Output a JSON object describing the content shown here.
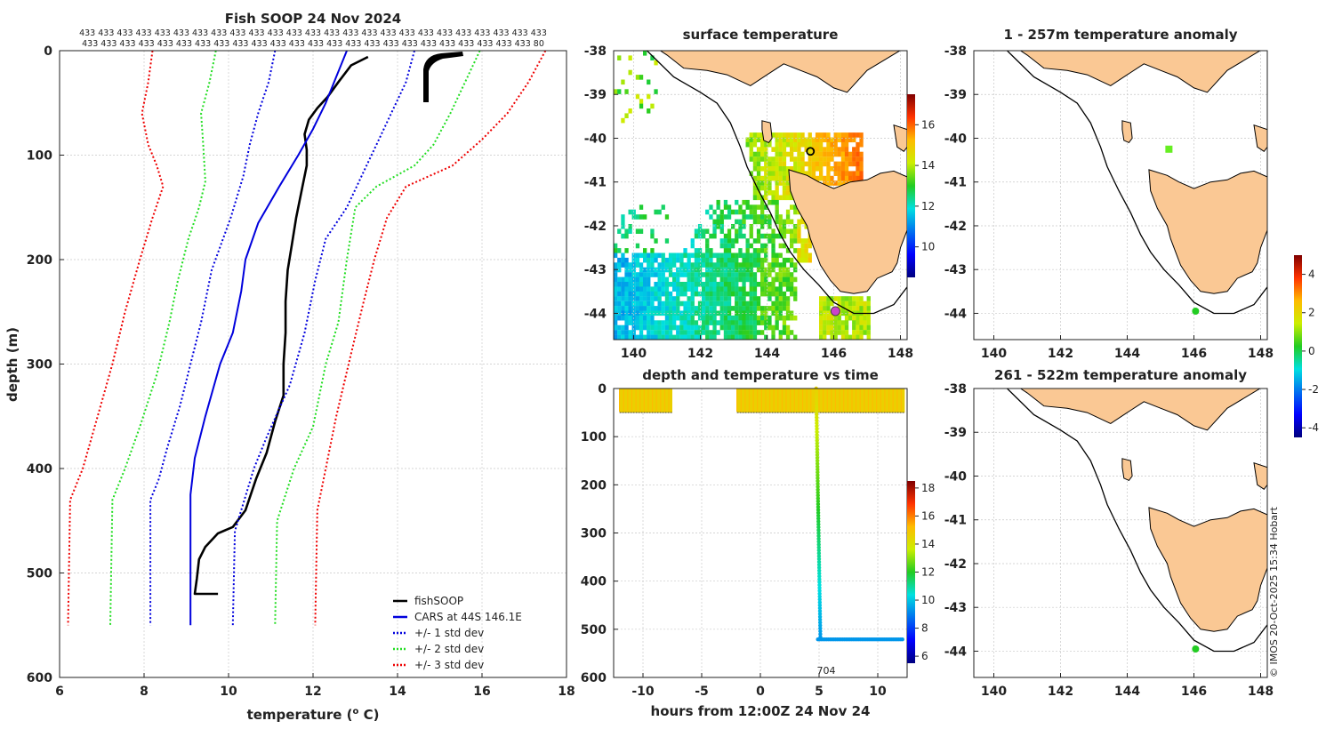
{
  "chart_data": [
    {
      "type": "line",
      "title": "Fish SOOP 24 Nov 2024",
      "xlabel": "temperature (o C)",
      "ylabel": "depth (m)",
      "xlim": [
        6,
        18
      ],
      "ylim": [
        0,
        600
      ],
      "xticks": [
        "6",
        "8",
        "10",
        "12",
        "14",
        "16",
        "18"
      ],
      "yticks": [
        "0",
        "100",
        "200",
        "300",
        "400",
        "500",
        "600"
      ],
      "count_row1": "433 433 433 433 433 433 433 433 433 433 433 433 433 433 433 433 433 433 433 433 433 433 433 433 433",
      "count_row2": "433 433 433 433 433 433 433 433 433 433 433 433 433 433 433 433 433 433 433 433 433 433 433 433 80",
      "legend": [
        "fishSOOP",
        "CARS at 44S 146.1E",
        "+/- 1 std dev",
        "+/- 2 std dev",
        "+/- 3 std dev"
      ],
      "series": [
        {
          "name": "fishSOOP",
          "color": "#000000",
          "points": [
            [
              13.3,
              6
            ],
            [
              12.9,
              14
            ],
            [
              12.6,
              30
            ],
            [
              12.35,
              44
            ],
            [
              12.1,
              55
            ],
            [
              11.9,
              66
            ],
            [
              11.8,
              80
            ],
            [
              11.85,
              95
            ],
            [
              11.85,
              110
            ],
            [
              11.75,
              130
            ],
            [
              11.6,
              160
            ],
            [
              11.5,
              185
            ],
            [
              11.4,
              210
            ],
            [
              11.35,
              240
            ],
            [
              11.35,
              270
            ],
            [
              11.3,
              300
            ],
            [
              11.3,
              330
            ],
            [
              11.1,
              355
            ],
            [
              10.9,
              385
            ],
            [
              10.65,
              410
            ],
            [
              10.4,
              440
            ],
            [
              10.1,
              456
            ],
            [
              9.75,
              462
            ],
            [
              9.45,
              475
            ],
            [
              9.3,
              487
            ],
            [
              9.25,
              505
            ],
            [
              9.2,
              520
            ],
            [
              9.75,
              520
            ]
          ]
        },
        {
          "name": "CARS",
          "color": "#0000dd",
          "points": [
            [
              12.8,
              0
            ],
            [
              12.55,
              25
            ],
            [
              12.3,
              50
            ],
            [
              12.0,
              75
            ],
            [
              11.65,
              100
            ],
            [
              11.2,
              130
            ],
            [
              10.7,
              165
            ],
            [
              10.4,
              200
            ],
            [
              10.3,
              230
            ],
            [
              10.1,
              270
            ],
            [
              9.8,
              300
            ],
            [
              9.45,
              350
            ],
            [
              9.2,
              390
            ],
            [
              9.1,
              425
            ],
            [
              9.1,
              550
            ]
          ]
        },
        {
          "name": "+1 std",
          "color": "#0000dd",
          "dotted": true,
          "points": [
            [
              14.4,
              0
            ],
            [
              14.2,
              30
            ],
            [
              13.85,
              60
            ],
            [
              13.5,
              90
            ],
            [
              13.15,
              120
            ],
            [
              12.8,
              150
            ],
            [
              12.3,
              180
            ],
            [
              12.05,
              220
            ],
            [
              11.8,
              270
            ],
            [
              11.45,
              320
            ],
            [
              10.9,
              370
            ],
            [
              10.6,
              400
            ],
            [
              10.15,
              460
            ],
            [
              10.1,
              550
            ]
          ]
        },
        {
          "name": "-1 std",
          "color": "#0000dd",
          "dotted": true,
          "points": [
            [
              11.1,
              0
            ],
            [
              10.95,
              30
            ],
            [
              10.7,
              60
            ],
            [
              10.5,
              90
            ],
            [
              10.35,
              120
            ],
            [
              10.05,
              160
            ],
            [
              9.6,
              210
            ],
            [
              9.35,
              260
            ],
            [
              9.1,
              300
            ],
            [
              8.85,
              340
            ],
            [
              8.55,
              380
            ],
            [
              8.35,
              410
            ],
            [
              8.15,
              430
            ],
            [
              8.15,
              550
            ]
          ]
        },
        {
          "name": "+2 std",
          "color": "#22dd22",
          "dotted": true,
          "points": [
            [
              15.95,
              0
            ],
            [
              15.6,
              30
            ],
            [
              15.25,
              60
            ],
            [
              14.85,
              90
            ],
            [
              14.4,
              110
            ],
            [
              13.5,
              130
            ],
            [
              13.0,
              150
            ],
            [
              12.8,
              200
            ],
            [
              12.6,
              260
            ],
            [
              12.3,
              300
            ],
            [
              12.0,
              360
            ],
            [
              11.55,
              400
            ],
            [
              11.15,
              450
            ],
            [
              11.1,
              550
            ]
          ]
        },
        {
          "name": "-2 std",
          "color": "#22dd22",
          "dotted": true,
          "points": [
            [
              9.7,
              0
            ],
            [
              9.55,
              30
            ],
            [
              9.35,
              60
            ],
            [
              9.4,
              90
            ],
            [
              9.45,
              125
            ],
            [
              9.3,
              150
            ],
            [
              9.05,
              180
            ],
            [
              8.8,
              220
            ],
            [
              8.6,
              260
            ],
            [
              8.3,
              310
            ],
            [
              7.9,
              360
            ],
            [
              7.55,
              400
            ],
            [
              7.25,
              430
            ],
            [
              7.2,
              550
            ]
          ]
        },
        {
          "name": "+3 std",
          "color": "#ee0000",
          "dotted": true,
          "points": [
            [
              17.5,
              0
            ],
            [
              17.1,
              30
            ],
            [
              16.6,
              60
            ],
            [
              16.0,
              85
            ],
            [
              15.3,
              110
            ],
            [
              14.2,
              130
            ],
            [
              13.75,
              160
            ],
            [
              13.45,
              200
            ],
            [
              13.2,
              240
            ],
            [
              12.9,
              290
            ],
            [
              12.55,
              350
            ],
            [
              12.3,
              400
            ],
            [
              12.1,
              440
            ],
            [
              12.05,
              550
            ]
          ]
        },
        {
          "name": "-3 std",
          "color": "#ee0000",
          "dotted": true,
          "points": [
            [
              8.2,
              0
            ],
            [
              8.1,
              30
            ],
            [
              7.95,
              60
            ],
            [
              8.1,
              90
            ],
            [
              8.3,
              110
            ],
            [
              8.45,
              130
            ],
            [
              8.2,
              160
            ],
            [
              7.9,
              200
            ],
            [
              7.55,
              250
            ],
            [
              7.25,
              300
            ],
            [
              6.9,
              350
            ],
            [
              6.55,
              400
            ],
            [
              6.25,
              430
            ],
            [
              6.2,
              550
            ]
          ]
        }
      ]
    },
    {
      "type": "heatmap",
      "title": "surface temperature",
      "xlim": [
        139.4,
        148.2
      ],
      "ylim": [
        -44.6,
        -38
      ],
      "xticks": [
        "140",
        "142",
        "144",
        "146",
        "148"
      ],
      "yticks": [
        "-38",
        "-39",
        "-40",
        "-41",
        "-42",
        "-43",
        "-44"
      ],
      "colorbar_ticks": [
        "10",
        "12",
        "14",
        "16"
      ],
      "colorbar_range": [
        8.5,
        17.5
      ]
    },
    {
      "type": "scatter",
      "title": "depth and temperature vs time",
      "xlabel": "hours from 12:00Z 24 Nov 24",
      "xlim": [
        -12.5,
        12.5
      ],
      "ylim": [
        0,
        600
      ],
      "xticks": [
        "-10",
        "-5",
        "0",
        "5",
        "10"
      ],
      "yticks": [
        "0",
        "100",
        "200",
        "300",
        "400",
        "500",
        "600"
      ],
      "annotation": "704",
      "colorbar_ticks": [
        "6",
        "8",
        "10",
        "12",
        "14",
        "16",
        "18"
      ],
      "colorbar_range": [
        5.5,
        18.5
      ]
    },
    {
      "type": "scatter",
      "title": "1 - 257m temperature anomaly",
      "xlim": [
        139.4,
        148.2
      ],
      "ylim": [
        -44.6,
        -38
      ],
      "xticks": [
        "140",
        "142",
        "144",
        "146",
        "148"
      ],
      "yticks": [
        "-38",
        "-39",
        "-40",
        "-41",
        "-42",
        "-43",
        "-44"
      ],
      "points": [
        [
          145.25,
          -40.25
        ],
        [
          146.05,
          -43.95
        ]
      ]
    },
    {
      "type": "scatter",
      "title": "261 - 522m temperature anomaly",
      "xlim": [
        139.4,
        148.2
      ],
      "ylim": [
        -44.6,
        -38
      ],
      "xticks": [
        "140",
        "142",
        "144",
        "146",
        "148"
      ],
      "yticks": [
        "-38",
        "-39",
        "-40",
        "-41",
        "-42",
        "-43",
        "-44"
      ],
      "points": [
        [
          146.05,
          -43.95
        ]
      ]
    }
  ],
  "anomaly_colorbar_ticks": [
    "4",
    "2",
    "0",
    "-2",
    "-4"
  ],
  "anomaly_colorbar_range": [
    -4.5,
    5
  ],
  "credit": "© IMOS 20-Oct-2025 15:34 Hobart",
  "colors": {
    "land": "#fac894",
    "grid": "#c8c8c8"
  }
}
